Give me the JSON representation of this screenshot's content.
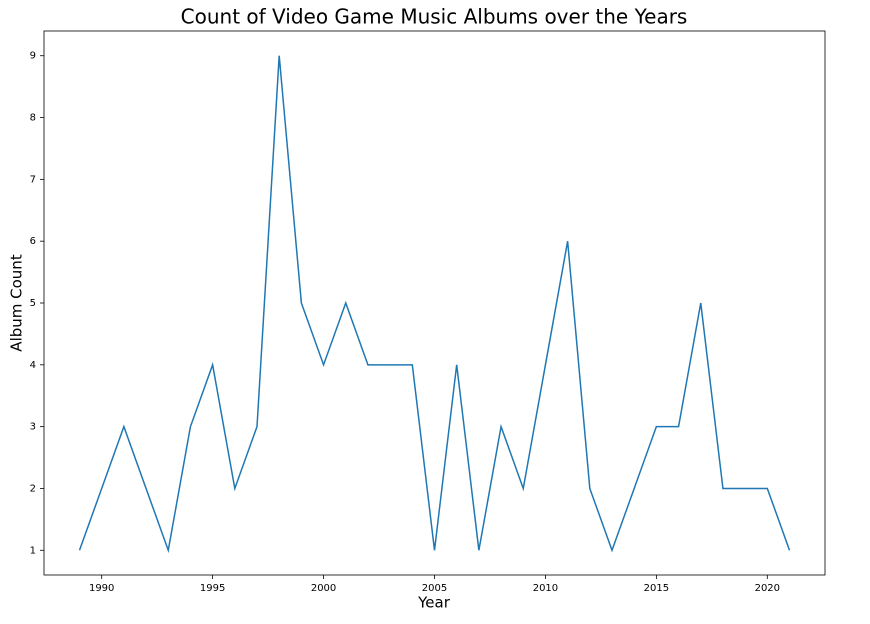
{
  "chart_data": {
    "type": "line",
    "title": "Count of Video Game Music Albums over the Years",
    "x_label": "Year",
    "y_label": "Album Count",
    "x": [
      1989,
      1990,
      1991,
      1992,
      1993,
      1994,
      1995,
      1996,
      1997,
      1998,
      1999,
      2000,
      2001,
      2002,
      2003,
      2004,
      2005,
      2006,
      2007,
      2008,
      2009,
      2010,
      2011,
      2012,
      2013,
      2014,
      2015,
      2016,
      2017,
      2018,
      2019,
      2020,
      2021
    ],
    "values": [
      1,
      2,
      3,
      2,
      1,
      3,
      4,
      2,
      3,
      9,
      5,
      4,
      5,
      4,
      4,
      4,
      1,
      4,
      1,
      3,
      2,
      4,
      6,
      2,
      1,
      2,
      3,
      3,
      5,
      2,
      2,
      2,
      1
    ],
    "color": "#1f77b4",
    "xlim": [
      1987.4,
      2022.6
    ],
    "xticks": [
      1990,
      1995,
      2000,
      2005,
      2010,
      2015,
      2020
    ],
    "ylim": [
      0.6,
      9.4
    ],
    "yticks": [
      1,
      2,
      3,
      4,
      5,
      6,
      7,
      8,
      9
    ],
    "grid": false
  }
}
